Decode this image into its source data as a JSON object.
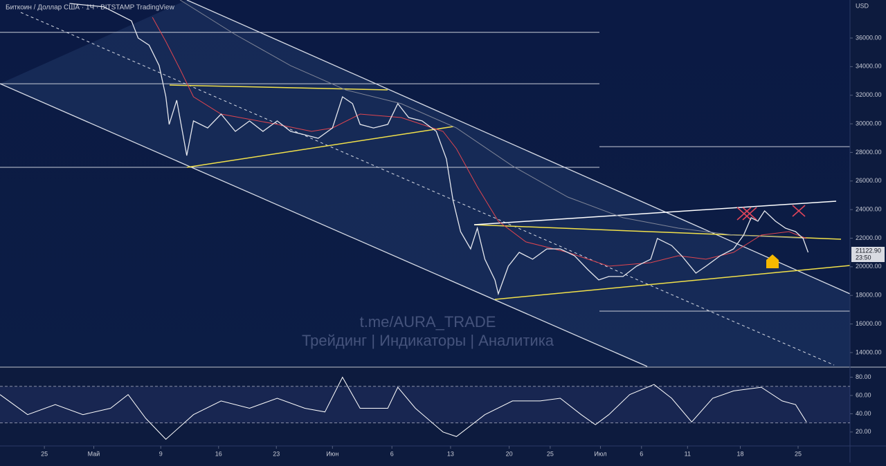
{
  "chart_data": {
    "type": "line",
    "title": "Биткоин / Доллар США · 1Ч · BITSTAMP  TradingView",
    "currency": "USD",
    "last_price": "21122.90",
    "countdown": "23:50",
    "watermark": "t.me/AURA_TRADE",
    "watermark_subtitle": "Трейдинг | Индикаторы | Аналитика",
    "xlim": [
      0,
      101.5
    ],
    "xticks": [
      {
        "value": 5.3,
        "label": "25"
      },
      {
        "value": 11.2,
        "label": "Май"
      },
      {
        "value": 19.2,
        "label": "9"
      },
      {
        "value": 26.1,
        "label": "16"
      },
      {
        "value": 33.0,
        "label": "23"
      },
      {
        "value": 39.7,
        "label": "Июн"
      },
      {
        "value": 46.8,
        "label": "6"
      },
      {
        "value": 53.8,
        "label": "13"
      },
      {
        "value": 60.8,
        "label": "20"
      },
      {
        "value": 65.7,
        "label": "25"
      },
      {
        "value": 71.7,
        "label": "Июл"
      },
      {
        "value": 76.6,
        "label": "6"
      },
      {
        "value": 82.1,
        "label": "11"
      },
      {
        "value": 88.4,
        "label": "18"
      },
      {
        "value": 95.3,
        "label": "25"
      }
    ],
    "ylim": [
      13030,
      38660
    ],
    "yticks": [
      {
        "value": 14000,
        "label": "14000.00"
      },
      {
        "value": 16000,
        "label": "16000.00"
      },
      {
        "value": 18000,
        "label": "18000.00"
      },
      {
        "value": 20000,
        "label": "20000.00"
      },
      {
        "value": 22000,
        "label": "22000.00"
      },
      {
        "value": 24000,
        "label": "24000.00"
      },
      {
        "value": 26000,
        "label": "26000.00"
      },
      {
        "value": 28000,
        "label": "28000.00"
      },
      {
        "value": 30000,
        "label": "30000.00"
      },
      {
        "value": 32000,
        "label": "32000.00"
      },
      {
        "value": 34000,
        "label": "34000.00"
      },
      {
        "value": 36000,
        "label": "36000.00"
      }
    ],
    "levels": [
      36400,
      32800,
      28400,
      26960,
      16900
    ],
    "series": [
      {
        "name": "Price",
        "color": "#e6e8ee",
        "x": [
          8.3,
          12.4,
          15.7,
          16.5,
          17.8,
          19.0,
          19.8,
          20.2,
          21.1,
          22.3,
          23.1,
          24.8,
          26.4,
          28.1,
          29.8,
          31.4,
          33.1,
          34.7,
          36.4,
          38.0,
          39.7,
          40.9,
          42.1,
          43.0,
          44.6,
          46.3,
          47.5,
          48.8,
          50.4,
          52.1,
          53.3,
          54.1,
          55.0,
          56.2,
          57.0,
          57.9,
          59.1,
          59.5,
          60.7,
          62.0,
          63.6,
          65.3,
          66.9,
          68.6,
          70.2,
          71.5,
          72.7,
          74.4,
          76.0,
          77.7,
          78.5,
          80.2,
          81.4,
          83.1,
          84.3,
          86.0,
          87.6,
          88.8,
          89.7,
          90.5,
          91.3,
          92.6,
          93.8,
          95.0,
          95.9,
          96.5
        ],
        "values": [
          38420,
          38180,
          37200,
          36000,
          35500,
          34070,
          31900,
          29960,
          31650,
          27780,
          30200,
          29710,
          30680,
          29470,
          30200,
          29470,
          30200,
          29470,
          29230,
          28990,
          29710,
          31890,
          31410,
          29960,
          29710,
          29960,
          31410,
          30440,
          30200,
          29470,
          27540,
          24640,
          22460,
          21250,
          22700,
          20530,
          19080,
          18110,
          20040,
          21010,
          20530,
          21250,
          21250,
          20770,
          19800,
          19080,
          19320,
          19320,
          20040,
          20530,
          21980,
          21490,
          20770,
          19560,
          20040,
          20770,
          21250,
          22220,
          23430,
          23190,
          23910,
          23190,
          22700,
          22460,
          21980,
          21010
        ]
      },
      {
        "name": "MA",
        "color": "#e0454f",
        "x": [
          18.2,
          19.8,
          21.5,
          23.1,
          26.4,
          33.1,
          37.2,
          39.7,
          43.0,
          47.9,
          52.9,
          54.5,
          57.0,
          59.5,
          62.8,
          67.8,
          72.7,
          77.7,
          81.0,
          84.3,
          87.6,
          90.9,
          94.2,
          96.3
        ],
        "values": [
          37450,
          35760,
          33820,
          31890,
          30680,
          29960,
          29470,
          29710,
          30680,
          30440,
          29470,
          28260,
          25600,
          23190,
          21740,
          21010,
          20040,
          20290,
          20770,
          20530,
          21010,
          22220,
          22460,
          21980
        ]
      },
      {
        "name": "MA 200",
        "color": "#7f8597",
        "x": [
          21.5,
          28.1,
          34.7,
          41.3,
          47.9,
          54.5,
          61.2,
          67.8,
          74.4,
          81.0,
          87.6,
          96.3
        ],
        "values": [
          38660,
          36240,
          34070,
          32370,
          31410,
          29710,
          27050,
          24880,
          23430,
          22700,
          22220,
          21980
        ]
      }
    ],
    "rsi": {
      "ylim": [
        7,
        88
      ],
      "yticks": [
        {
          "value": 20,
          "label": "20.00"
        },
        {
          "value": 40,
          "label": "40.00"
        },
        {
          "value": 60,
          "label": "60.00"
        },
        {
          "value": 80,
          "label": "80.00"
        }
      ],
      "bands": [
        70,
        30
      ],
      "color": "#ffffff",
      "x": [
        0,
        3.3,
        6.6,
        9.9,
        13.2,
        15.3,
        17.4,
        19.8,
        23.1,
        26.4,
        29.8,
        33.1,
        36.4,
        38.8,
        40.9,
        43.0,
        46.3,
        47.5,
        49.6,
        52.9,
        54.5,
        57.9,
        61.2,
        64.5,
        66.9,
        69.4,
        71.1,
        72.7,
        75.2,
        78.1,
        80.2,
        82.6,
        85.1,
        87.6,
        90.9,
        93.4,
        95.0,
        96.3
      ],
      "values": [
        61,
        39,
        50,
        39,
        46,
        61,
        35,
        12,
        39,
        54,
        46,
        57,
        46,
        42,
        80,
        46,
        46,
        69,
        46,
        20,
        15,
        39,
        54,
        54,
        57,
        39,
        28,
        39,
        61,
        72,
        57,
        31,
        57,
        65,
        69,
        54,
        50,
        31
      ]
    }
  }
}
